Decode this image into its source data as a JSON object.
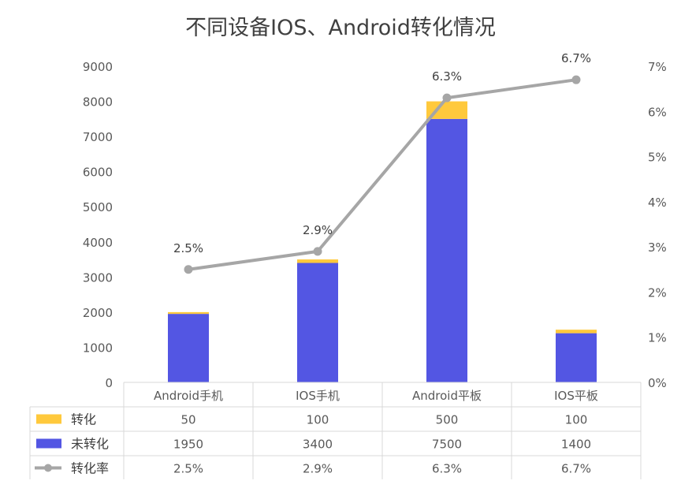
{
  "chart_data": {
    "type": "bar",
    "stacked": true,
    "title": "不同设备IOS、Android转化情况",
    "categories": [
      "Android手机",
      "IOS手机",
      "Android平板",
      "IOS平板"
    ],
    "series": [
      {
        "name": "转化",
        "values": [
          50,
          100,
          500,
          100
        ],
        "color": "#ffc93c",
        "axis": "left"
      },
      {
        "name": "未转化",
        "values": [
          1950,
          3400,
          7500,
          1400
        ],
        "color": "#5356e3",
        "axis": "left"
      },
      {
        "name": "转化率",
        "type": "line",
        "values": [
          2.5,
          2.9,
          6.3,
          6.7
        ],
        "labels": [
          "2.5%",
          "2.9%",
          "6.3%",
          "6.7%"
        ],
        "color": "#a6a6a6",
        "axis": "right"
      }
    ],
    "y_left": {
      "min": 0,
      "max": 9000,
      "ticks": [
        "0",
        "1000",
        "2000",
        "3000",
        "4000",
        "5000",
        "6000",
        "7000",
        "8000",
        "9000"
      ]
    },
    "y_right": {
      "min": 0,
      "max": 7,
      "ticks": [
        "0%",
        "1%",
        "2%",
        "3%",
        "4%",
        "5%",
        "6%",
        "7%"
      ]
    },
    "table_rows": [
      {
        "label": "转化",
        "cells": [
          "50",
          "100",
          "500",
          "100"
        ]
      },
      {
        "label": "未转化",
        "cells": [
          "1950",
          "3400",
          "7500",
          "1400"
        ]
      },
      {
        "label": "转化率",
        "cells": [
          "2.5%",
          "2.9%",
          "6.3%",
          "6.7%"
        ]
      }
    ],
    "grid": false,
    "legend": "data-table"
  }
}
